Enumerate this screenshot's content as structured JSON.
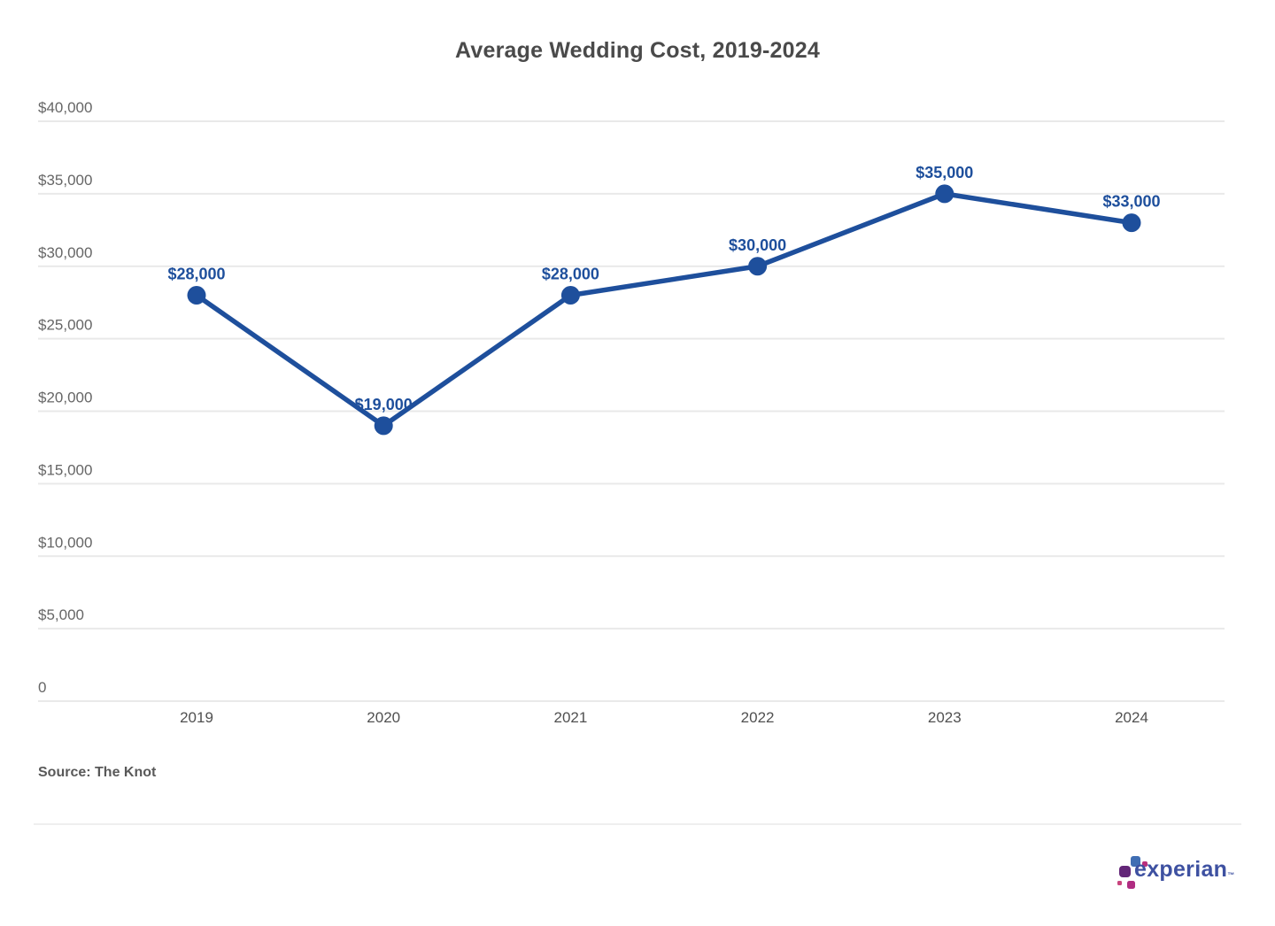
{
  "title": "Average Wedding Cost, 2019-2024",
  "source": "Source: The Knot",
  "chart_data": {
    "type": "line",
    "title": "Average Wedding Cost, 2019-2024",
    "categories": [
      "2019",
      "2020",
      "2021",
      "2022",
      "2023",
      "2024"
    ],
    "values": [
      28000,
      19000,
      28000,
      30000,
      35000,
      33000
    ],
    "point_labels": [
      "$28,000",
      "$19,000",
      "$28,000",
      "$30,000",
      "$35,000",
      "$33,000"
    ],
    "xlabel": "",
    "ylabel": "",
    "ylim": [
      0,
      40000
    ],
    "ytick_values": [
      0,
      5000,
      10000,
      15000,
      20000,
      25000,
      30000,
      35000,
      40000
    ],
    "ytick_labels": [
      "0",
      "$5,000",
      "$10,000",
      "$15,000",
      "$20,000",
      "$25,000",
      "$30,000",
      "$35,000",
      "$40,000"
    ],
    "grid": "horizontal",
    "legend": "none",
    "line_color": "#1E4F9C",
    "point_color": "#1E4F9C",
    "point_label_color": "#1E4F9C",
    "gridline_color": "#E9E9E9"
  },
  "logo": {
    "text": "experian",
    "trademark": "™",
    "wordmark_color": "#3E51A1",
    "squares": [
      {
        "name": "blue-square",
        "color": "#406EB3"
      },
      {
        "name": "magenta-small-square",
        "color": "#BA2F7D"
      },
      {
        "name": "purple-square",
        "color": "#632678"
      },
      {
        "name": "magenta-tiny-square",
        "color": "#C9447E"
      },
      {
        "name": "magenta-bottom-square",
        "color": "#B02C82"
      }
    ]
  }
}
